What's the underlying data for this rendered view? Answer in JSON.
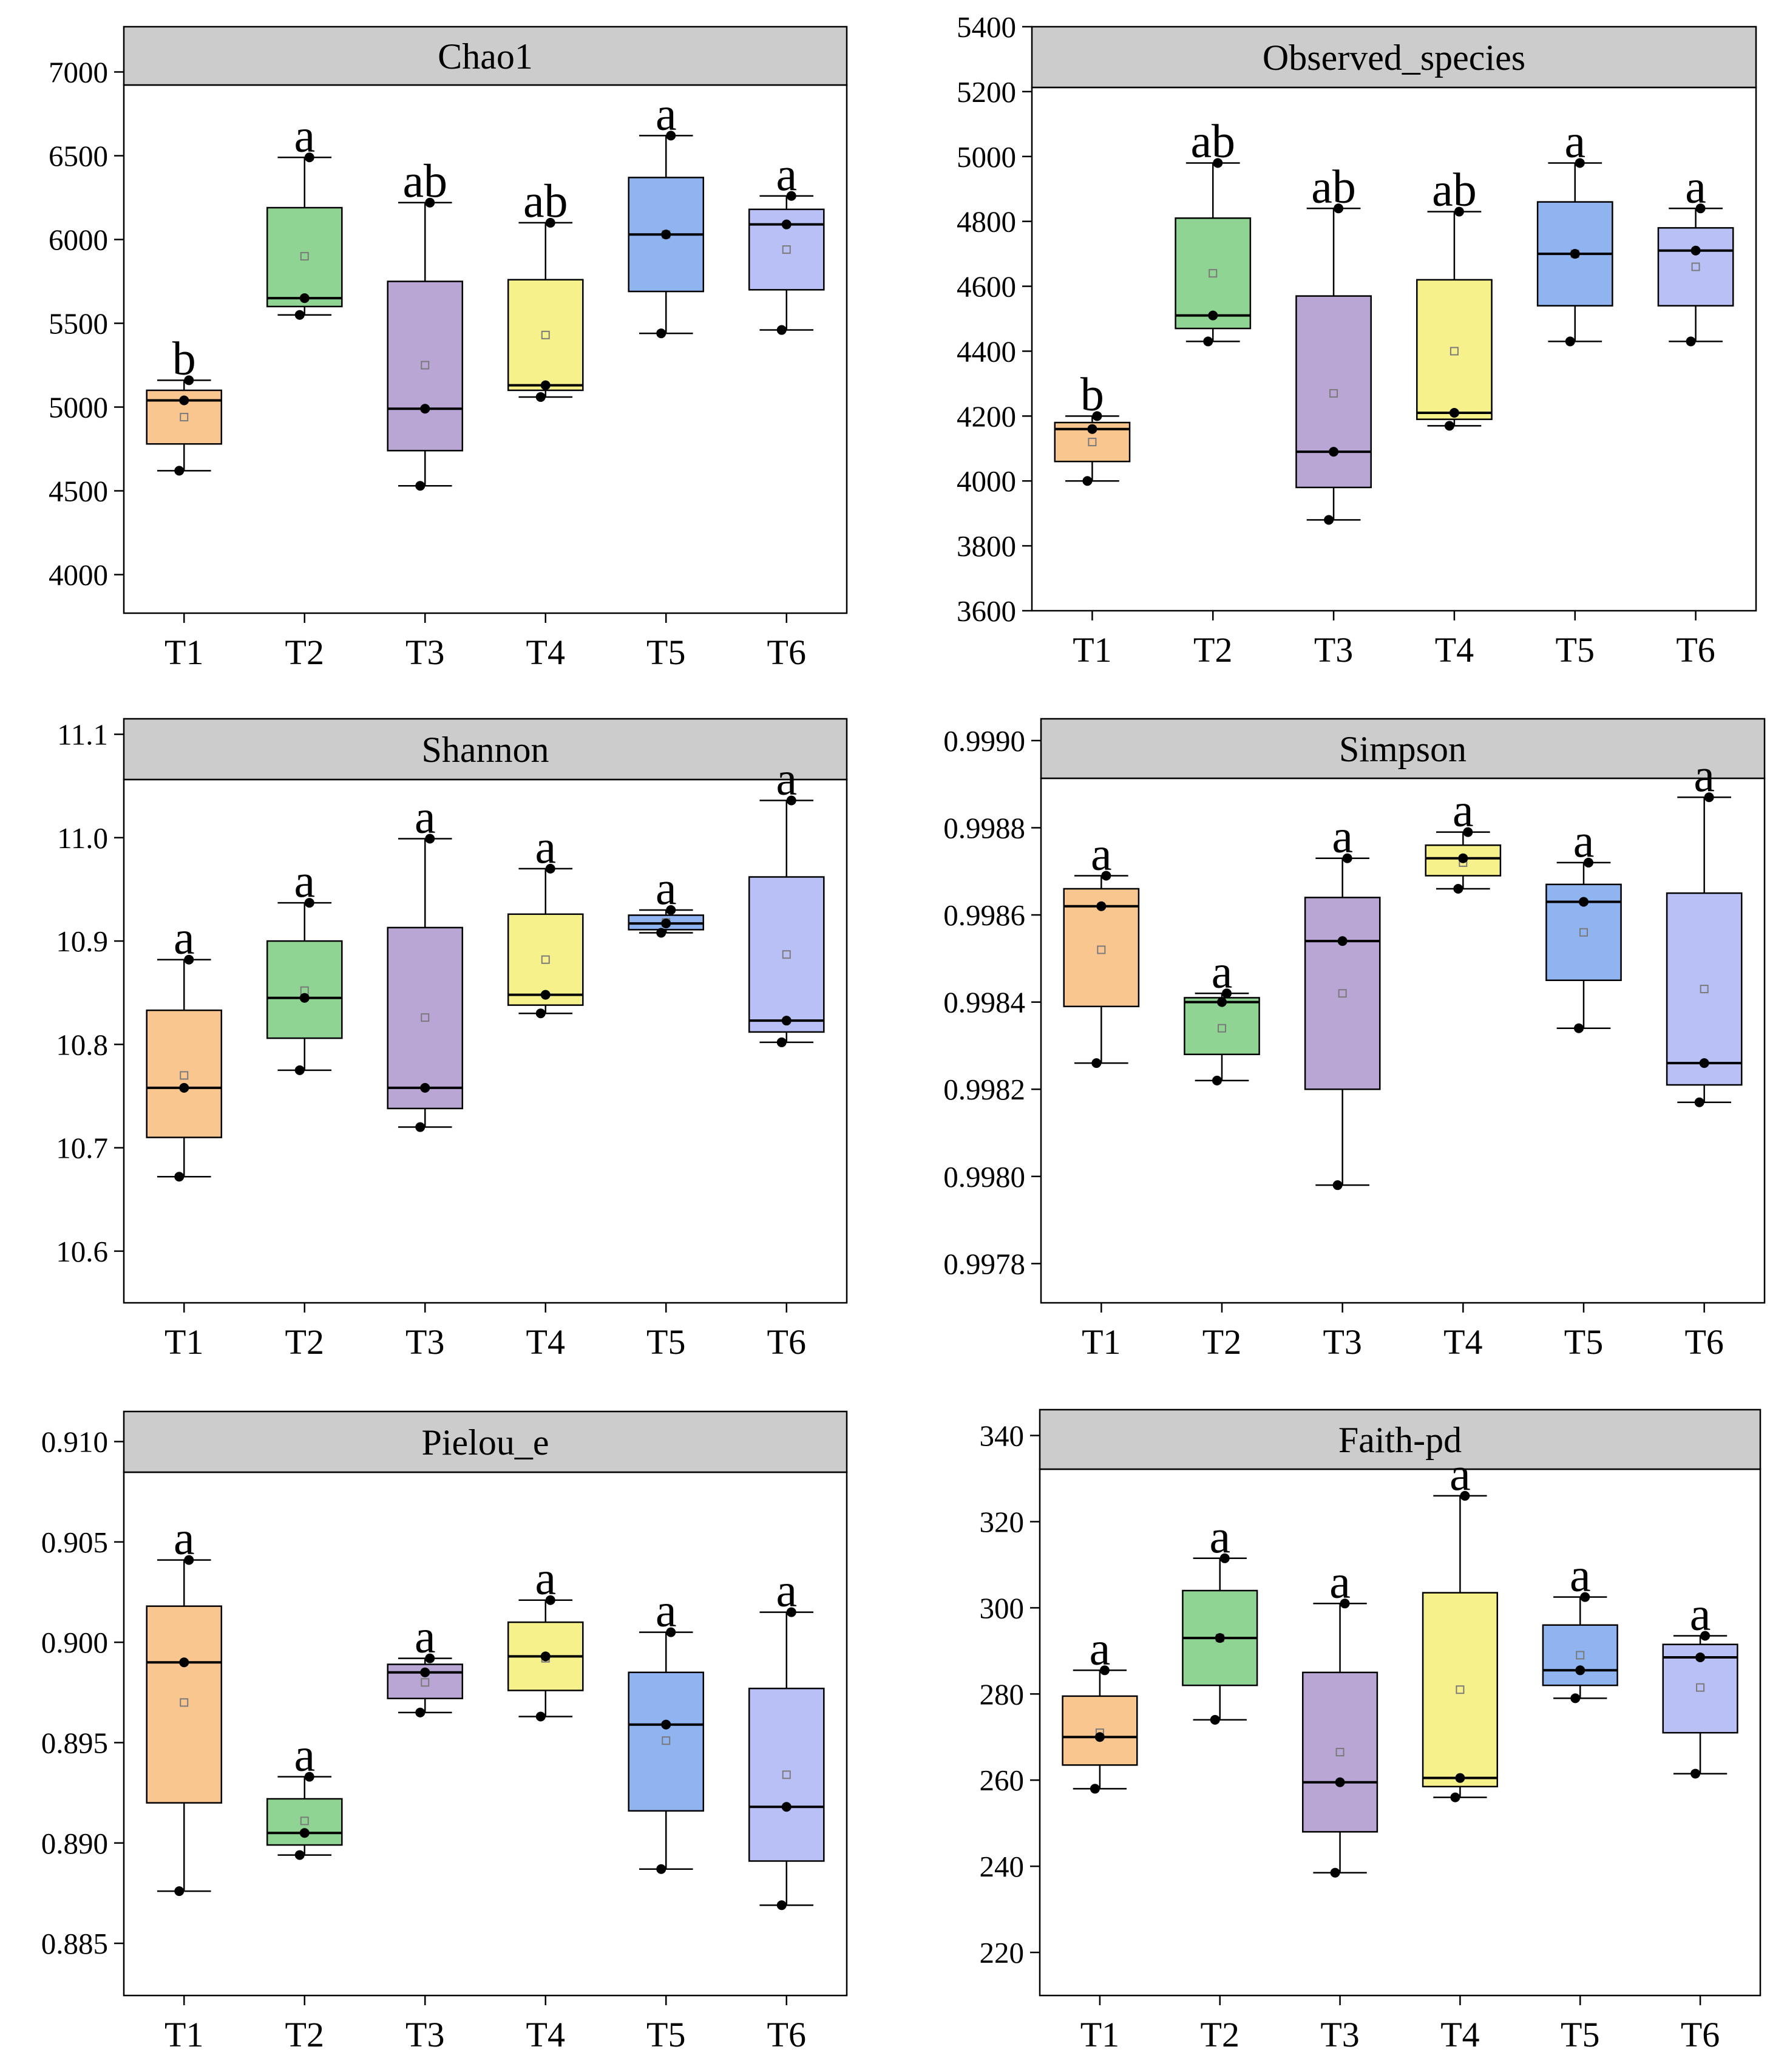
{
  "colors": [
    "#f9c690",
    "#8fd492",
    "#b9a6d4",
    "#f7f18b",
    "#8fb4f0",
    "#b8c0f5"
  ],
  "chart_data": [
    {
      "type": "box",
      "title": "Chao1",
      "categories": [
        "T1",
        "T2",
        "T3",
        "T4",
        "T5",
        "T6"
      ],
      "ylim": [
        3770,
        7270
      ],
      "yticks": [
        4000,
        4500,
        5000,
        5500,
        6000,
        6500,
        7000
      ],
      "ytick_labels": [
        "4000",
        "4500",
        "5000",
        "5500",
        "6000",
        "6500",
        "7000"
      ],
      "boxes": [
        {
          "q1": 4780,
          "median": 5040,
          "q3": 5100,
          "min": 4620,
          "max": 5160,
          "mean": 4940,
          "points": [
            4620,
            5160,
            5040
          ],
          "letter": "b"
        },
        {
          "q1": 5600,
          "median": 5650,
          "q3": 6190,
          "min": 5550,
          "max": 6490,
          "mean": 5900,
          "points": [
            5550,
            6490,
            5650
          ],
          "letter": "a"
        },
        {
          "q1": 4740,
          "median": 4990,
          "q3": 5750,
          "min": 4530,
          "max": 6220,
          "mean": 5250,
          "points": [
            4530,
            6220,
            4990
          ],
          "letter": "ab"
        },
        {
          "q1": 5100,
          "median": 5130,
          "q3": 5760,
          "min": 5060,
          "max": 6100,
          "mean": 5430,
          "points": [
            5060,
            6100,
            5130
          ],
          "letter": "ab"
        },
        {
          "q1": 5690,
          "median": 6030,
          "q3": 6370,
          "min": 5440,
          "max": 6620,
          "mean": 6030,
          "points": [
            5440,
            6620,
            6030
          ],
          "letter": "a"
        },
        {
          "q1": 5700,
          "median": 6090,
          "q3": 6180,
          "min": 5460,
          "max": 6260,
          "mean": 5940,
          "points": [
            5460,
            6260,
            6090
          ],
          "letter": "a"
        }
      ]
    },
    {
      "type": "box",
      "title": "Observed_species",
      "categories": [
        "T1",
        "T2",
        "T3",
        "T4",
        "T5",
        "T6"
      ],
      "ylim": [
        3600,
        5400
      ],
      "yticks": [
        3600,
        3800,
        4000,
        4200,
        4400,
        4600,
        4800,
        5000,
        5200,
        5400
      ],
      "ytick_labels": [
        "3600",
        "3800",
        "4000",
        "4200",
        "4400",
        "4600",
        "4800",
        "5000",
        "5200",
        "5400"
      ],
      "boxes": [
        {
          "q1": 4060,
          "median": 4160,
          "q3": 4180,
          "min": 4000,
          "max": 4200,
          "mean": 4120,
          "points": [
            4000,
            4200,
            4160
          ],
          "letter": "b"
        },
        {
          "q1": 4470,
          "median": 4510,
          "q3": 4810,
          "min": 4430,
          "max": 4980,
          "mean": 4640,
          "points": [
            4430,
            4980,
            4510
          ],
          "letter": "ab"
        },
        {
          "q1": 3980,
          "median": 4090,
          "q3": 4570,
          "min": 3880,
          "max": 4840,
          "mean": 4270,
          "points": [
            3880,
            4840,
            4090
          ],
          "letter": "ab"
        },
        {
          "q1": 4190,
          "median": 4210,
          "q3": 4620,
          "min": 4170,
          "max": 4830,
          "mean": 4400,
          "points": [
            4170,
            4830,
            4210
          ],
          "letter": "ab"
        },
        {
          "q1": 4540,
          "median": 4700,
          "q3": 4860,
          "min": 4430,
          "max": 4980,
          "mean": 4700,
          "points": [
            4430,
            4980,
            4700
          ],
          "letter": "a"
        },
        {
          "q1": 4540,
          "median": 4710,
          "q3": 4780,
          "min": 4430,
          "max": 4840,
          "mean": 4660,
          "points": [
            4430,
            4840,
            4710
          ],
          "letter": "a"
        }
      ]
    },
    {
      "type": "box",
      "title": "Shannon",
      "categories": [
        "T1",
        "T2",
        "T3",
        "T4",
        "T5",
        "T6"
      ],
      "ylim": [
        10.55,
        11.115
      ],
      "yticks": [
        10.6,
        10.7,
        10.8,
        10.9,
        11.0,
        11.1
      ],
      "ytick_labels": [
        "10.6",
        "10.7",
        "10.8",
        "10.9",
        "11.0",
        "11.1"
      ],
      "boxes": [
        {
          "q1": 10.71,
          "median": 10.758,
          "q3": 10.833,
          "min": 10.672,
          "max": 10.882,
          "mean": 10.77,
          "points": [
            10.672,
            10.882,
            10.758
          ],
          "letter": "a"
        },
        {
          "q1": 10.806,
          "median": 10.845,
          "q3": 10.9,
          "min": 10.775,
          "max": 10.937,
          "mean": 10.852,
          "points": [
            10.775,
            10.937,
            10.845
          ],
          "letter": "a"
        },
        {
          "q1": 10.738,
          "median": 10.758,
          "q3": 10.913,
          "min": 10.72,
          "max": 10.999,
          "mean": 10.826,
          "points": [
            10.72,
            10.999,
            10.758
          ],
          "letter": "a"
        },
        {
          "q1": 10.838,
          "median": 10.848,
          "q3": 10.926,
          "min": 10.83,
          "max": 10.97,
          "mean": 10.882,
          "points": [
            10.83,
            10.97,
            10.848
          ],
          "letter": "a"
        },
        {
          "q1": 10.911,
          "median": 10.917,
          "q3": 10.925,
          "min": 10.908,
          "max": 10.93,
          "mean": 10.918,
          "points": [
            10.908,
            10.93,
            10.917
          ],
          "letter": "a"
        },
        {
          "q1": 10.812,
          "median": 10.823,
          "q3": 10.962,
          "min": 10.802,
          "max": 11.036,
          "mean": 10.887,
          "points": [
            10.802,
            11.036,
            10.823
          ],
          "letter": "a"
        }
      ]
    },
    {
      "type": "box",
      "title": "Simpson",
      "categories": [
        "T1",
        "T2",
        "T3",
        "T4",
        "T5",
        "T6"
      ],
      "ylim": [
        0.99771,
        0.99905
      ],
      "yticks": [
        0.9978,
        0.998,
        0.9982,
        0.9984,
        0.9986,
        0.9988,
        0.999
      ],
      "ytick_labels": [
        "0.9978",
        "0.9980",
        "0.9982",
        "0.9984",
        "0.9986",
        "0.9988",
        "0.9990"
      ],
      "boxes": [
        {
          "q1": 0.99839,
          "median": 0.99862,
          "q3": 0.99866,
          "min": 0.99826,
          "max": 0.99869,
          "mean": 0.99852,
          "points": [
            0.99826,
            0.99869,
            0.99862
          ],
          "letter": "a"
        },
        {
          "q1": 0.99828,
          "median": 0.9984,
          "q3": 0.99841,
          "min": 0.99822,
          "max": 0.99842,
          "mean": 0.99834,
          "points": [
            0.99822,
            0.99842,
            0.9984
          ],
          "letter": "a"
        },
        {
          "q1": 0.9982,
          "median": 0.99854,
          "q3": 0.99864,
          "min": 0.99798,
          "max": 0.99873,
          "mean": 0.99842,
          "points": [
            0.99798,
            0.99873,
            0.99854
          ],
          "letter": "a"
        },
        {
          "q1": 0.99869,
          "median": 0.99873,
          "q3": 0.99876,
          "min": 0.99866,
          "max": 0.99879,
          "mean": 0.99872,
          "points": [
            0.99866,
            0.99879,
            0.99873
          ],
          "letter": "a"
        },
        {
          "q1": 0.99845,
          "median": 0.99863,
          "q3": 0.99867,
          "min": 0.99834,
          "max": 0.99872,
          "mean": 0.99856,
          "points": [
            0.99834,
            0.99872,
            0.99863
          ],
          "letter": "a"
        },
        {
          "q1": 0.99821,
          "median": 0.99826,
          "q3": 0.99865,
          "min": 0.99817,
          "max": 0.99887,
          "mean": 0.99843,
          "points": [
            0.99817,
            0.99887,
            0.99826
          ],
          "letter": "a"
        }
      ]
    },
    {
      "type": "box",
      "title": "Pielou_e",
      "categories": [
        "T1",
        "T2",
        "T3",
        "T4",
        "T5",
        "T6"
      ],
      "ylim": [
        0.8824,
        0.9115
      ],
      "yticks": [
        0.885,
        0.89,
        0.895,
        0.9,
        0.905,
        0.91
      ],
      "ytick_labels": [
        "0.885",
        "0.890",
        "0.895",
        "0.900",
        "0.905",
        "0.910"
      ],
      "boxes": [
        {
          "q1": 0.892,
          "median": 0.899,
          "q3": 0.9018,
          "min": 0.8876,
          "max": 0.9041,
          "mean": 0.897,
          "points": [
            0.8876,
            0.9041,
            0.899
          ],
          "letter": "a"
        },
        {
          "q1": 0.8899,
          "median": 0.8905,
          "q3": 0.8922,
          "min": 0.8894,
          "max": 0.8933,
          "mean": 0.8911,
          "points": [
            0.8894,
            0.8933,
            0.8905
          ],
          "letter": "a"
        },
        {
          "q1": 0.8972,
          "median": 0.8985,
          "q3": 0.8989,
          "min": 0.8965,
          "max": 0.8992,
          "mean": 0.898,
          "points": [
            0.8965,
            0.8992,
            0.8985
          ],
          "letter": "a"
        },
        {
          "q1": 0.8976,
          "median": 0.8993,
          "q3": 0.901,
          "min": 0.8963,
          "max": 0.9021,
          "mean": 0.8992,
          "points": [
            0.8963,
            0.9021,
            0.8993
          ],
          "letter": "a"
        },
        {
          "q1": 0.8916,
          "median": 0.8959,
          "q3": 0.8985,
          "min": 0.8887,
          "max": 0.9005,
          "mean": 0.8951,
          "points": [
            0.8887,
            0.9005,
            0.8959
          ],
          "letter": "a"
        },
        {
          "q1": 0.8891,
          "median": 0.8918,
          "q3": 0.8977,
          "min": 0.8869,
          "max": 0.9015,
          "mean": 0.8934,
          "points": [
            0.8869,
            0.9015,
            0.8918
          ],
          "letter": "a"
        }
      ]
    },
    {
      "type": "box",
      "title": "Faith-pd",
      "categories": [
        "T1",
        "T2",
        "T3",
        "T4",
        "T5",
        "T6"
      ],
      "ylim": [
        210,
        346
      ],
      "yticks": [
        220,
        240,
        260,
        280,
        300,
        320,
        340
      ],
      "ytick_labels": [
        "220",
        "240",
        "260",
        "280",
        "300",
        "320",
        "340"
      ],
      "boxes": [
        {
          "q1": 263.5,
          "median": 270,
          "q3": 279.5,
          "min": 258,
          "max": 285.5,
          "mean": 271,
          "points": [
            258,
            285.5,
            270
          ],
          "letter": "a"
        },
        {
          "q1": 282,
          "median": 293,
          "q3": 304,
          "min": 274,
          "max": 311.5,
          "mean": 293,
          "points": [
            274,
            311.5,
            293
          ],
          "letter": "a"
        },
        {
          "q1": 248,
          "median": 259.5,
          "q3": 285,
          "min": 238.5,
          "max": 301,
          "mean": 266.5,
          "points": [
            238.5,
            301,
            259.5
          ],
          "letter": "a"
        },
        {
          "q1": 258.5,
          "median": 260.5,
          "q3": 303.5,
          "min": 256,
          "max": 326,
          "mean": 281,
          "points": [
            256,
            326,
            260.5
          ],
          "letter": "a"
        },
        {
          "q1": 282,
          "median": 285.5,
          "q3": 296,
          "min": 279,
          "max": 302.5,
          "mean": 289,
          "points": [
            279,
            302.5,
            285.5
          ],
          "letter": "a"
        },
        {
          "q1": 271,
          "median": 288.5,
          "q3": 291.5,
          "min": 261.5,
          "max": 293.5,
          "mean": 281.5,
          "points": [
            261.5,
            293.5,
            288.5
          ],
          "letter": "a"
        }
      ]
    }
  ]
}
